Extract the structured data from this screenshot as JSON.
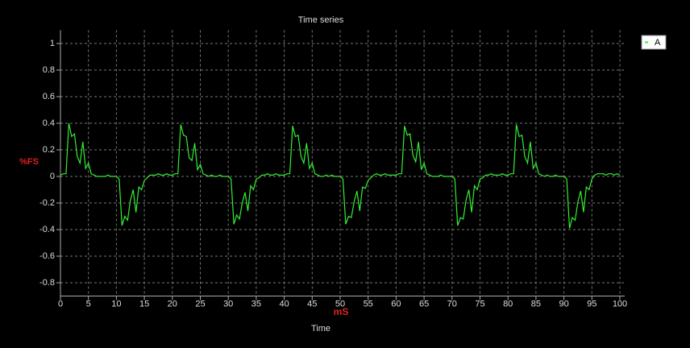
{
  "chart_data": {
    "type": "line",
    "title": "Time series",
    "y_label": "%FS",
    "x_unit": "mS",
    "x_label": "Time",
    "xlim": [
      0,
      100
    ],
    "xticks": [
      0,
      5,
      10,
      15,
      20,
      25,
      30,
      35,
      40,
      45,
      50,
      55,
      60,
      65,
      70,
      75,
      80,
      85,
      90,
      95,
      100
    ],
    "ylim": [
      -0.9,
      1.1
    ],
    "yticks": [
      -0.8,
      -0.6,
      -0.4,
      -0.2,
      0,
      0.2,
      0.4,
      0.6,
      0.8,
      1
    ],
    "grid": true,
    "legend": "top-right",
    "x": [
      0,
      0.5,
      1,
      1.5,
      2,
      2.5,
      3,
      3.5,
      4,
      4.5,
      5,
      5.5,
      6,
      6.5,
      7,
      7.5,
      8,
      8.5,
      9,
      9.5,
      10,
      10.5,
      11,
      11.5,
      12,
      12.5,
      13,
      13.5,
      14,
      14.5,
      15,
      15.5,
      16,
      16.5,
      17,
      17.5,
      18,
      18.5,
      19,
      19.5,
      20,
      20.5,
      21,
      21.5,
      22,
      22.5,
      23,
      23.5,
      24,
      24.5,
      25,
      25.5,
      26,
      26.5,
      27,
      27.5,
      28,
      28.5,
      29,
      29.5,
      30,
      30.5,
      31,
      31.5,
      32,
      32.5,
      33,
      33.5,
      34,
      34.5,
      35,
      35.5,
      36,
      36.5,
      37,
      37.5,
      38,
      38.5,
      39,
      39.5,
      40,
      40.5,
      41,
      41.5,
      42,
      42.5,
      43,
      43.5,
      44,
      44.5,
      45,
      45.5,
      46,
      46.5,
      47,
      47.5,
      48,
      48.5,
      49,
      49.5,
      50,
      50.5,
      51,
      51.5,
      52,
      52.5,
      53,
      53.5,
      54,
      54.5,
      55,
      55.5,
      56,
      56.5,
      57,
      57.5,
      58,
      58.5,
      59,
      59.5,
      60,
      60.5,
      61,
      61.5,
      62,
      62.5,
      63,
      63.5,
      64,
      64.5,
      65,
      65.5,
      66,
      66.5,
      67,
      67.5,
      68,
      68.5,
      69,
      69.5,
      70,
      70.5,
      71,
      71.5,
      72,
      72.5,
      73,
      73.5,
      74,
      74.5,
      75,
      75.5,
      76,
      76.5,
      77,
      77.5,
      78,
      78.5,
      79,
      79.5,
      80,
      80.5,
      81,
      81.5,
      82,
      82.5,
      83,
      83.5,
      84,
      84.5,
      85,
      85.5,
      86,
      86.5,
      87,
      87.5,
      88,
      88.5,
      89,
      89.5,
      90,
      90.5,
      91,
      91.5,
      92,
      92.5,
      93,
      93.5,
      94,
      94.5,
      95,
      95.5,
      96,
      96.5,
      97,
      97.5,
      98,
      98.5,
      99,
      99.5,
      100
    ],
    "series": [
      {
        "name": "A",
        "color": "#33ee33",
        "values": [
          0.01,
          0.02,
          0.02,
          0.4,
          0.3,
          0.32,
          0.15,
          0.1,
          0.26,
          0.06,
          0.1,
          0.02,
          0.01,
          0,
          0,
          0,
          0,
          0.01,
          0,
          0,
          0,
          -0.02,
          -0.37,
          -0.3,
          -0.33,
          -0.18,
          -0.1,
          -0.27,
          -0.08,
          -0.1,
          -0.03,
          -0.01,
          0.01,
          0.01,
          0.01,
          0.02,
          0.01,
          0.01,
          0.02,
          0.01,
          0.01,
          0.02,
          0.02,
          0.39,
          0.31,
          0.3,
          0.14,
          0.12,
          0.25,
          0.05,
          0.09,
          0.02,
          0.01,
          0,
          0.01,
          0,
          0,
          0.01,
          0,
          0,
          0,
          -0.02,
          -0.36,
          -0.29,
          -0.32,
          -0.2,
          -0.12,
          -0.26,
          -0.07,
          -0.1,
          -0.02,
          -0.01,
          0.01,
          0.01,
          0.02,
          0.01,
          0.01,
          0.02,
          0.01,
          0.01,
          0.01,
          0.02,
          0.02,
          0.38,
          0.3,
          0.31,
          0.15,
          0.1,
          0.25,
          0.06,
          0.1,
          0.02,
          0.01,
          0,
          0,
          0.01,
          0,
          0.01,
          0,
          0,
          0,
          -0.02,
          -0.36,
          -0.3,
          -0.31,
          -0.19,
          -0.11,
          -0.26,
          -0.08,
          -0.09,
          -0.03,
          -0.01,
          0.01,
          0.02,
          0.01,
          0.01,
          0.02,
          0.01,
          0.01,
          0.01,
          0.01,
          0.02,
          0.02,
          0.38,
          0.31,
          0.32,
          0.16,
          0.11,
          0.26,
          0.05,
          0.1,
          0.02,
          0.01,
          0,
          0,
          0,
          0.01,
          0,
          0,
          0,
          0,
          -0.02,
          -0.37,
          -0.31,
          -0.32,
          -0.18,
          -0.1,
          -0.27,
          -0.07,
          -0.1,
          -0.02,
          -0.01,
          0.01,
          0.01,
          0.02,
          0.01,
          0.01,
          0.01,
          0.02,
          0.01,
          0.01,
          0.02,
          0.02,
          0.39,
          0.3,
          0.31,
          0.15,
          0.1,
          0.26,
          0.06,
          0.1,
          0.02,
          0.01,
          0,
          0.01,
          0,
          0,
          0.01,
          0,
          0,
          0,
          -0.02,
          -0.39,
          -0.31,
          -0.33,
          -0.19,
          -0.11,
          -0.27,
          -0.08,
          -0.1,
          -0.02,
          0.01,
          0.02,
          0.02,
          0.02,
          0.01,
          0.02,
          0.02,
          0.01,
          0.02,
          0.01
        ]
      }
    ]
  }
}
